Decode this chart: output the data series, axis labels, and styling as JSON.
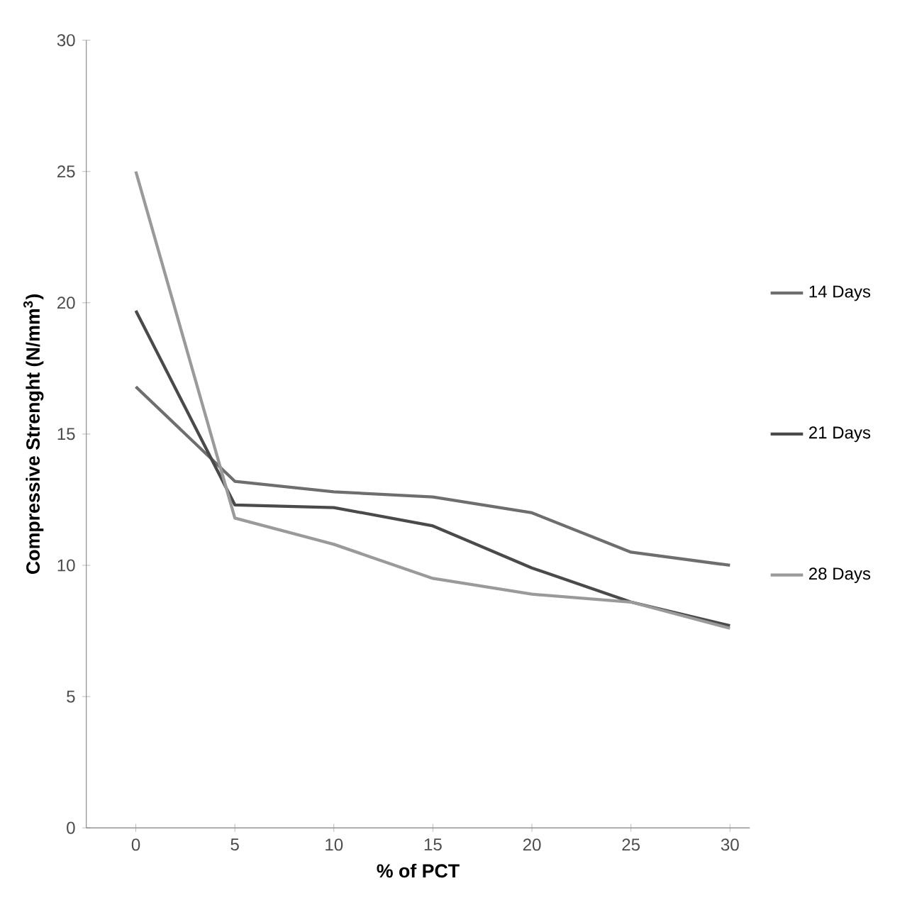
{
  "chart_data": {
    "type": "line",
    "xlabel": "% of PCT",
    "ylabel": "Compressive Strenght (N/mm$^{3}$)",
    "x": [
      0,
      5,
      10,
      15,
      20,
      25,
      30
    ],
    "series": [
      {
        "name": "14 Days",
        "color": "#6e6e6e",
        "values": [
          16.8,
          13.2,
          12.8,
          12.6,
          12.0,
          10.5,
          10.0
        ]
      },
      {
        "name": "21 Days",
        "color": "#4a4a4a",
        "values": [
          19.7,
          12.3,
          12.2,
          11.5,
          9.9,
          8.6,
          7.7
        ]
      },
      {
        "name": "28 Days",
        "color": "#9a9a9a",
        "values": [
          25.0,
          11.8,
          10.8,
          9.5,
          8.9,
          8.6,
          7.6
        ]
      }
    ],
    "xlim": [
      -2.5,
      31
    ],
    "ylim": [
      0,
      30
    ],
    "xticks": [
      0,
      5,
      10,
      15,
      20,
      25,
      30
    ],
    "yticks": [
      0,
      5,
      10,
      15,
      20,
      25,
      30
    ],
    "grid": false,
    "legend": "right",
    "marker": "none",
    "line_style": "solid"
  }
}
